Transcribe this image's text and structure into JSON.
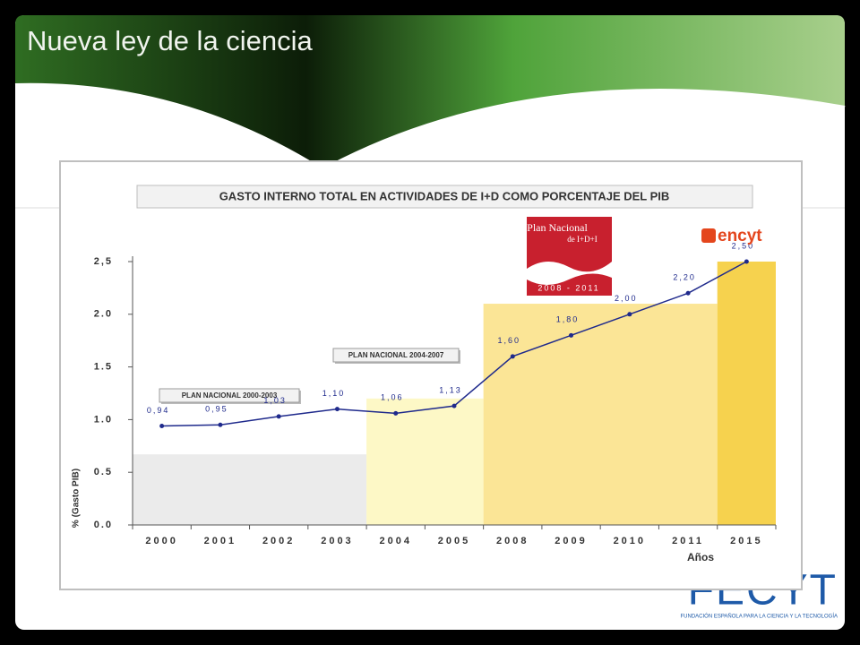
{
  "header": {
    "title": "Nueva ley de la ciencia"
  },
  "logos": {
    "plan_nacional": {
      "name": "Plan Nacional",
      "subtitle": "de I+D+I",
      "years": "2008 - 2011"
    },
    "encyt": "encyt",
    "fecyt": {
      "name": "FECYT",
      "subtitle": "FUNDACIÓN ESPAÑOLA PARA LA CIENCIA Y LA TECNOLOGÍA"
    }
  },
  "chart_data": {
    "type": "line",
    "title": "GASTO INTERNO TOTAL EN ACTIVIDADES DE I+D COMO PORCENTAJE DEL PIB",
    "categories": [
      "2000",
      "2001",
      "2002",
      "2003",
      "2004",
      "2005",
      "2008",
      "2009",
      "2010",
      "2011",
      "2015"
    ],
    "values": [
      0.94,
      0.95,
      1.03,
      1.1,
      1.06,
      1.13,
      1.6,
      1.8,
      2.0,
      2.2,
      2.5
    ],
    "value_labels": [
      "0,94",
      "0,95",
      "1,03",
      "1,10",
      "1,06",
      "1,13",
      "1,60",
      "1,80",
      "2,00",
      "2,20",
      "2,50"
    ],
    "color": "#1f2a8c",
    "ylabel": "% (Gasto PIB)",
    "xlabel": "Años",
    "ylim": [
      0,
      2.5
    ],
    "yticks": [
      {
        "value": 0,
        "label": "0.0"
      },
      {
        "value": 0.5,
        "label": "0.5"
      },
      {
        "value": 1,
        "label": "1.0"
      },
      {
        "value": 1.5,
        "label": "1.5"
      },
      {
        "value": 2,
        "label": "2.0"
      },
      {
        "value": 2.5,
        "label": "2,5"
      }
    ],
    "periods": [
      {
        "label": "PLAN NACIONAL 2000-2003",
        "start": "2000",
        "end": "2003",
        "level": 0.67,
        "color": "#ebebeb"
      },
      {
        "label": "PLAN NACIONAL 2004-2007",
        "start": "2004",
        "end": "2005",
        "level": 1.2,
        "color": "#fdf8c6"
      },
      {
        "start": "2008",
        "end": "2011",
        "level": 2.1,
        "color": "#fbe596"
      },
      {
        "start": "2015",
        "end": "2015",
        "level": 2.5,
        "color": "#f6d24e"
      }
    ]
  }
}
